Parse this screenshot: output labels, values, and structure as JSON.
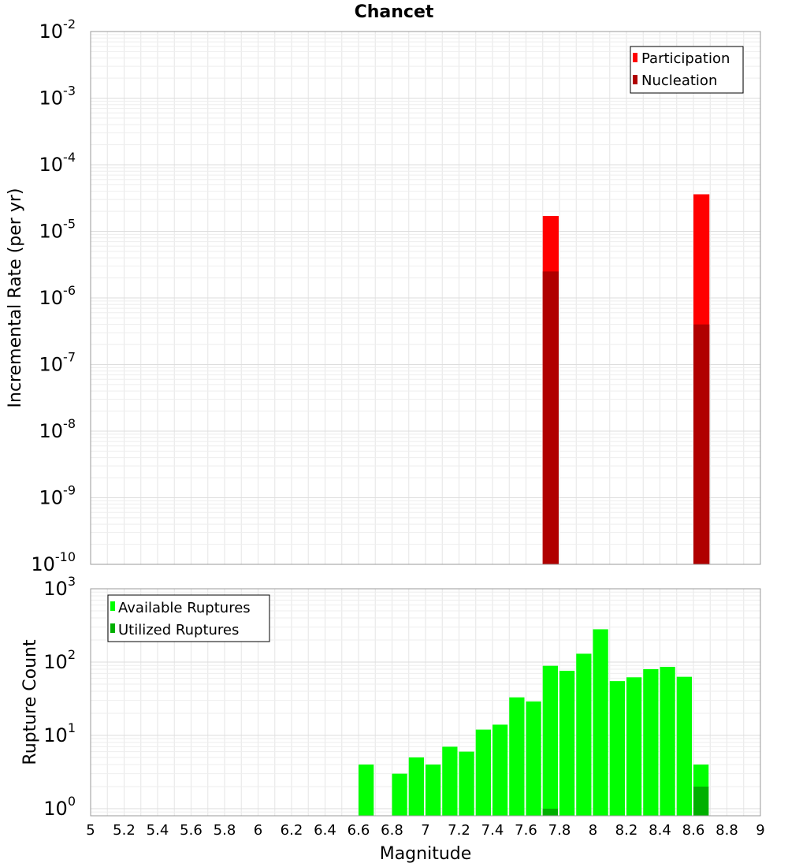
{
  "chart_data": [
    {
      "type": "bar",
      "title": "Chancet",
      "xlabel": "",
      "ylabel": "Incremental Rate (per yr)",
      "y_scale": "log",
      "ylim": [
        1e-10,
        0.01
      ],
      "xlim": [
        5,
        9
      ],
      "y_ticks": [
        {
          "base": "10",
          "exp": "-10"
        },
        {
          "base": "10",
          "exp": "-9"
        },
        {
          "base": "10",
          "exp": "-8"
        },
        {
          "base": "10",
          "exp": "-7"
        },
        {
          "base": "10",
          "exp": "-6"
        },
        {
          "base": "10",
          "exp": "-5"
        },
        {
          "base": "10",
          "exp": "-4"
        },
        {
          "base": "10",
          "exp": "-3"
        },
        {
          "base": "10",
          "exp": "-2"
        }
      ],
      "grid": true,
      "legend_position": "top-right",
      "series": [
        {
          "name": "Participation",
          "color": "#ff0000",
          "x": [
            7.75,
            8.65
          ],
          "values": [
            1.7e-05,
            3.6e-05
          ]
        },
        {
          "name": "Nucleation",
          "color": "#b00000",
          "x": [
            7.75,
            8.65
          ],
          "values": [
            2.5e-06,
            4e-07
          ]
        }
      ]
    },
    {
      "type": "bar",
      "title": "",
      "xlabel": "Magnitude",
      "ylabel": "Rupture Count",
      "y_scale": "log",
      "ylim": [
        0.8,
        1000
      ],
      "xlim": [
        5,
        9
      ],
      "x_ticks": [
        "5",
        "5.2",
        "5.4",
        "5.6",
        "5.8",
        "6",
        "6.2",
        "6.4",
        "6.6",
        "6.8",
        "7",
        "7.2",
        "7.4",
        "7.6",
        "7.8",
        "8",
        "8.2",
        "8.4",
        "8.6",
        "8.8",
        "9"
      ],
      "y_ticks": [
        {
          "base": "10",
          "exp": "0"
        },
        {
          "base": "10",
          "exp": "1"
        },
        {
          "base": "10",
          "exp": "2"
        },
        {
          "base": "10",
          "exp": "3"
        }
      ],
      "grid": true,
      "legend_position": "top-left",
      "series": [
        {
          "name": "Available Ruptures",
          "color": "#00ff00",
          "x": [
            6.65,
            6.85,
            6.95,
            7.05,
            7.15,
            7.25,
            7.35,
            7.45,
            7.55,
            7.65,
            7.75,
            7.85,
            7.95,
            8.05,
            8.15,
            8.25,
            8.35,
            8.45,
            8.55,
            8.65
          ],
          "values": [
            4,
            3,
            5,
            4,
            7,
            6,
            12,
            14,
            33,
            29,
            89,
            76,
            130,
            280,
            55,
            62,
            80,
            86,
            63,
            4
          ]
        },
        {
          "name": "Utilized Ruptures",
          "color": "#00b000",
          "x": [
            7.75,
            8.65
          ],
          "values": [
            1,
            2
          ]
        }
      ]
    }
  ]
}
